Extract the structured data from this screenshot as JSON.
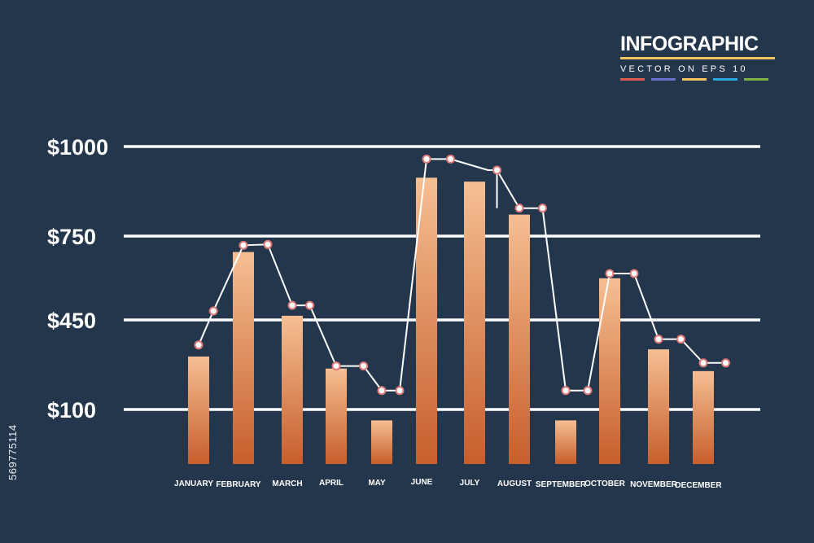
{
  "header": {
    "title": "INFOGRAPHIC",
    "subtitle": "VECTOR ON EPS 10",
    "accent_colors": [
      "#e05a4f",
      "#6b6fc9",
      "#f2c25f",
      "#2aa8e0",
      "#7cb342"
    ]
  },
  "side_id": "569775114",
  "colors": {
    "background": "#24364b",
    "grid": "#ffffff",
    "bar_top": "#f5bf93",
    "bar_bottom": "#c75e2c",
    "line": "#ffffff",
    "marker_stroke": "#e07a7a"
  },
  "chart_data": {
    "type": "bar",
    "categories": [
      "JANUARY",
      "FEBRUARY",
      "MARCH",
      "APRIL",
      "MAY",
      "JUNE",
      "JULY",
      "AUGUST",
      "SEPTEMBER",
      "OCTOBER",
      "NOVEMBER",
      "DECEMBER"
    ],
    "y_tick_labels": [
      "$100",
      "$450",
      "$750",
      "$1000"
    ],
    "y_tick_values": [
      100,
      450,
      750,
      1000
    ],
    "series": [
      {
        "values": [
          307,
          693,
          465,
          260,
          80,
          913,
          902,
          810,
          80,
          599,
          335,
          250
        ]
      }
    ],
    "line_series": {
      "points": [
        {
          "x": 0,
          "y": 352
        },
        {
          "x": 0.33,
          "y": 482
        },
        {
          "x": 1,
          "y": 717
        },
        {
          "x": 1.5,
          "y": 720
        },
        {
          "x": 2,
          "y": 502
        },
        {
          "x": 2.4,
          "y": 502
        },
        {
          "x": 3,
          "y": 270
        },
        {
          "x": 3.6,
          "y": 270
        },
        {
          "x": 4,
          "y": 174
        },
        {
          "x": 4.4,
          "y": 174
        },
        {
          "x": 5,
          "y": 965
        },
        {
          "x": 5.5,
          "y": 965
        },
        {
          "x": 6.5,
          "y": 934
        },
        {
          "x": 7,
          "y": 828
        },
        {
          "x": 7.5,
          "y": 828
        },
        {
          "x": 8,
          "y": 174
        },
        {
          "x": 8.5,
          "y": 174
        },
        {
          "x": 9,
          "y": 616
        },
        {
          "x": 9.5,
          "y": 616
        },
        {
          "x": 10,
          "y": 375
        },
        {
          "x": 10.5,
          "y": 375
        },
        {
          "x": 11,
          "y": 282
        },
        {
          "x": 11.5,
          "y": 282
        }
      ],
      "corner_points": [
        {
          "x": 6.5,
          "y": 965
        }
      ]
    },
    "grid": true,
    "xlabel": "",
    "ylabel": ""
  }
}
